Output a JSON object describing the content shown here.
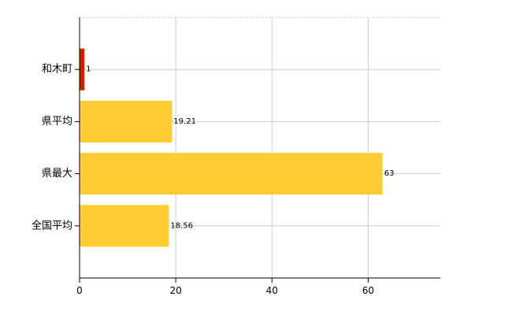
{
  "chart_data": {
    "type": "bar",
    "orientation": "horizontal",
    "categories": [
      "和木町",
      "県平均",
      "県最大",
      "全国平均"
    ],
    "values": [
      1,
      19.21,
      63,
      18.56
    ],
    "value_labels": [
      "1",
      "19.21",
      "63",
      "18.56"
    ],
    "colors": [
      "#cc2200",
      "#ffcc33",
      "#ffcc33",
      "#ffcc33"
    ],
    "xlim": [
      0,
      75
    ],
    "x_ticks": [
      0,
      20,
      40,
      60
    ],
    "x_tick_labels": [
      "0",
      "20",
      "40",
      "60"
    ],
    "grid": true,
    "title": "",
    "xlabel": "",
    "ylabel": ""
  }
}
